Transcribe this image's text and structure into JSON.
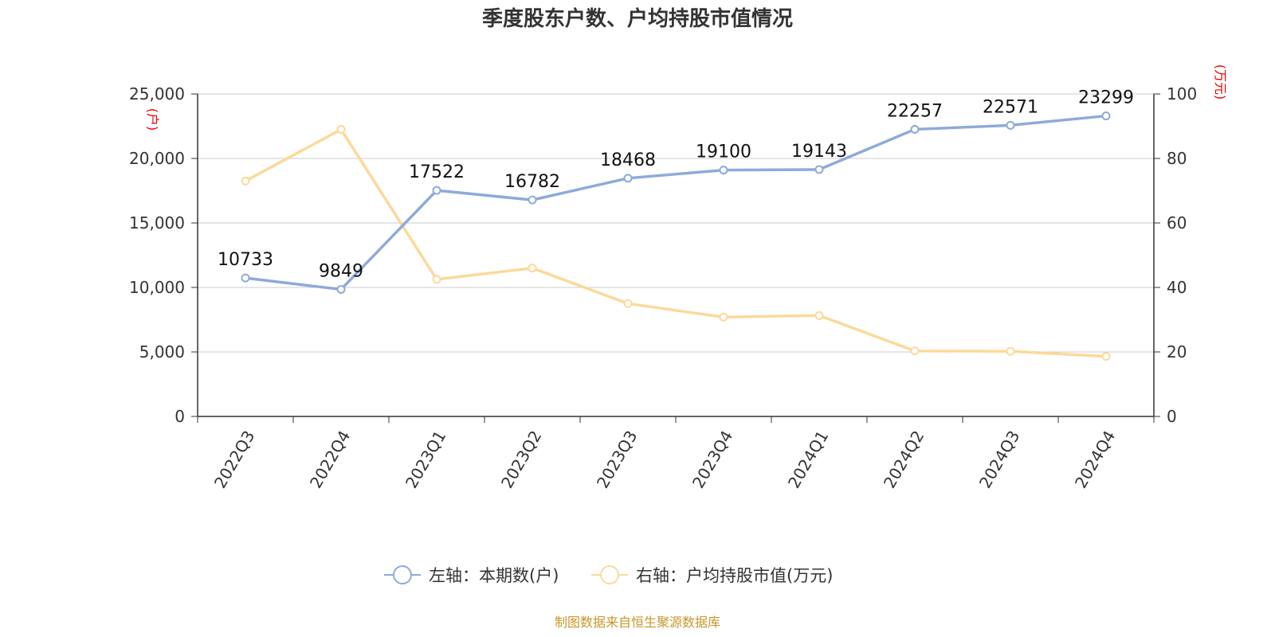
{
  "title": "季度股东户数、户均持股市值情况",
  "footer": "制图数据来自恒生聚源数据库",
  "chart_data": {
    "type": "line",
    "title": "季度股东户数、户均持股市值情况",
    "categories": [
      "2022Q3",
      "2022Q4",
      "2023Q1",
      "2023Q2",
      "2023Q3",
      "2023Q4",
      "2024Q1",
      "2024Q2",
      "2024Q3",
      "2024Q4"
    ],
    "y_left": {
      "unit": "(户)",
      "ticks": [
        "0",
        "5,000",
        "10,000",
        "15,000",
        "20,000",
        "25,000"
      ],
      "range": [
        0,
        25000
      ]
    },
    "y_right": {
      "unit": "(万元)",
      "ticks": [
        "0",
        "20",
        "40",
        "60",
        "80",
        "100"
      ],
      "range": [
        0,
        100
      ]
    },
    "grid": true,
    "legend_position": "bottom-center",
    "series": [
      {
        "name": "左轴：本期数(户)",
        "axis": "left",
        "color": "#8eaad9",
        "values": [
          10733,
          9849,
          17522,
          16782,
          18468,
          19100,
          19143,
          22257,
          22571,
          23299
        ],
        "labels": [
          "10733",
          "9849",
          "17522",
          "16782",
          "18468",
          "19100",
          "19143",
          "22257",
          "22571",
          "23299"
        ]
      },
      {
        "name": "右轴：户均持股市值(万元)",
        "axis": "right",
        "color": "#fcd99a",
        "values": [
          73.0,
          89.0,
          42.5,
          46.0,
          35.0,
          30.8,
          31.3,
          20.3,
          20.2,
          18.6
        ]
      }
    ]
  }
}
